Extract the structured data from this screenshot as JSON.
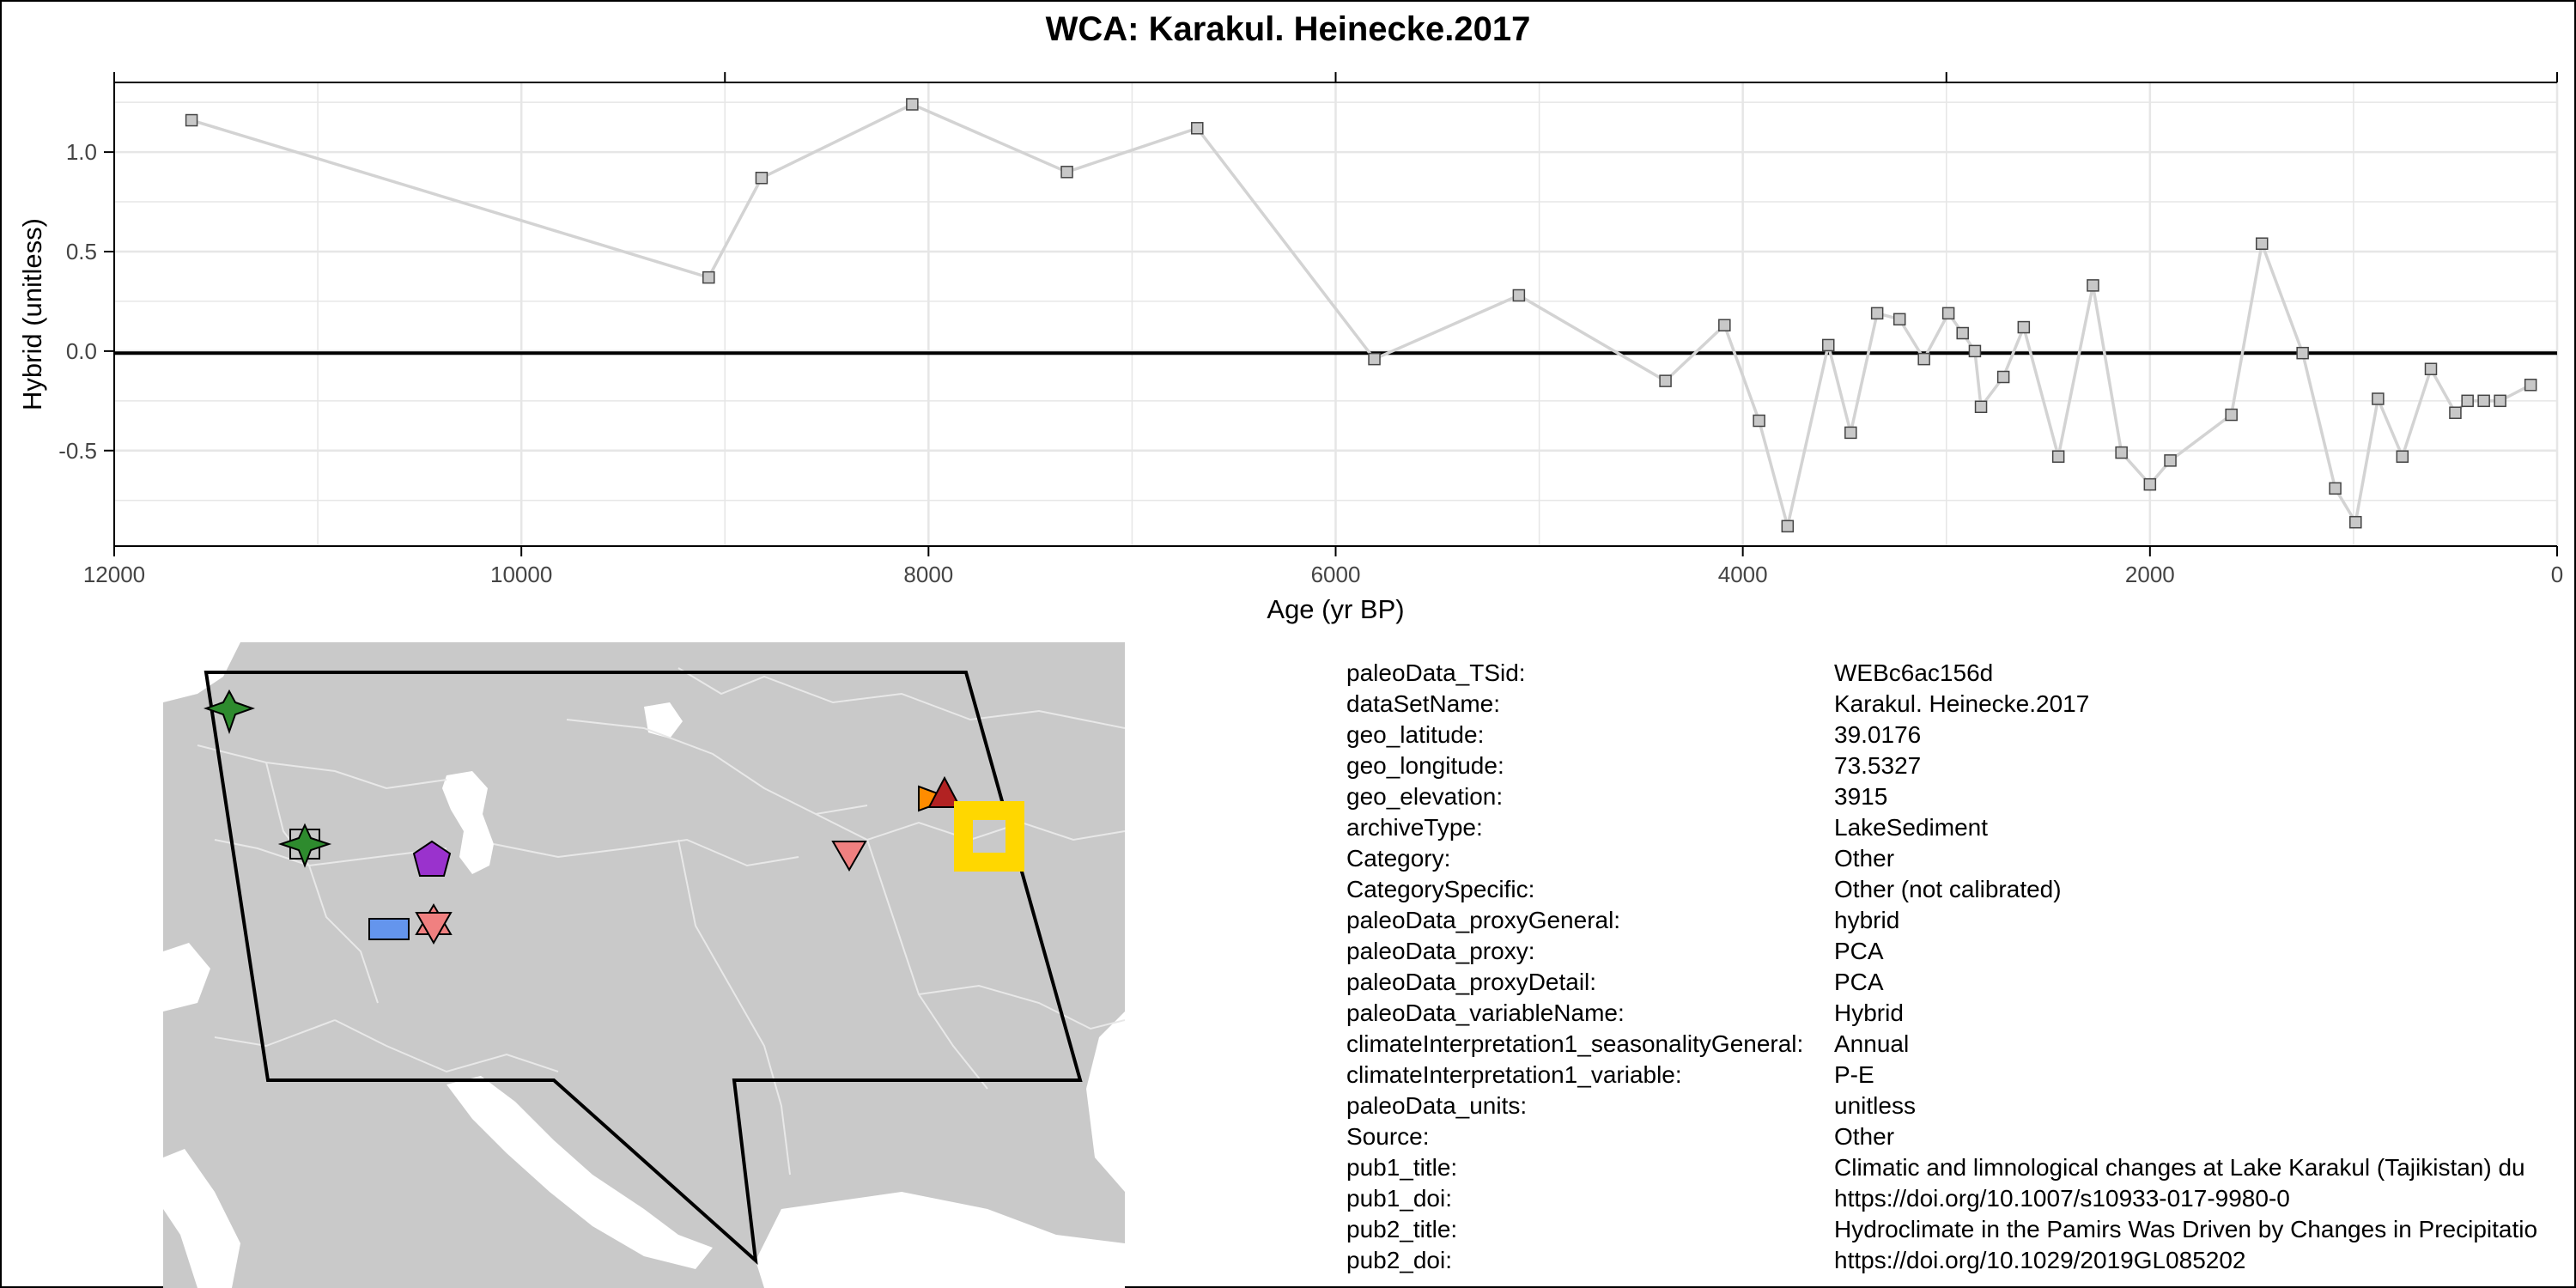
{
  "chart_data": {
    "type": "line",
    "title": "WCA: Karakul. Heinecke.2017",
    "xlabel": "Age (yr BP)",
    "ylabel": "Hybrid (unitless)",
    "xlim": [
      12000,
      0
    ],
    "ylim": [
      -0.98,
      1.35
    ],
    "x_ticks": [
      12000,
      10000,
      8000,
      6000,
      4000,
      2000,
      0
    ],
    "y_ticks": [
      1.0,
      0.5,
      0.0,
      -0.5
    ],
    "x_tick_labels": [
      "12000",
      "10000",
      "8000",
      "6000",
      "4000",
      "2000",
      "0"
    ],
    "y_tick_labels": [
      "1.0",
      "0.5",
      "0.0",
      "-0.5"
    ],
    "grid": true,
    "reference_line_y": -0.01,
    "series": [
      {
        "x": [
          11620,
          9080,
          8820,
          8080,
          7320,
          6680,
          5810,
          5100,
          4380,
          4090,
          3920,
          3780,
          3580,
          3470,
          3340,
          3230,
          3110,
          2990,
          2920,
          2860,
          2830,
          2720,
          2620,
          2450,
          2280,
          2140,
          2000,
          1900,
          1600,
          1450,
          1250,
          1090,
          990,
          880,
          760,
          620,
          500,
          440,
          360,
          280,
          130
        ],
        "y": [
          1.16,
          0.37,
          0.87,
          1.24,
          0.9,
          1.12,
          -0.04,
          0.28,
          -0.15,
          0.13,
          -0.35,
          -0.88,
          0.03,
          -0.41,
          0.19,
          0.16,
          -0.04,
          0.19,
          0.09,
          0.0,
          -0.28,
          -0.13,
          0.12,
          -0.53,
          0.33,
          -0.51,
          -0.67,
          -0.55,
          -0.32,
          0.54,
          -0.01,
          -0.69,
          -0.86,
          -0.24,
          -0.53,
          -0.09,
          -0.31,
          -0.25,
          -0.25,
          -0.25,
          -0.17
        ]
      }
    ],
    "colors": {
      "line": "#d3d3d3",
      "marker_fill": "#c8c8c8",
      "marker_edge": "#444444",
      "zero_line": "#000000",
      "grid": "#e6e6e6"
    }
  },
  "map": {
    "land_color": "#c9c9c9",
    "sea_color": "#ffffff",
    "region_outline": "#000000",
    "markers": [
      {
        "shape": "star4",
        "color": "#2e8b2e"
      },
      {
        "shape": "star4",
        "color": "#2e8b2e"
      },
      {
        "shape": "square",
        "color": "#c8c8c8"
      },
      {
        "shape": "pentagon",
        "color": "#9a32cd"
      },
      {
        "shape": "rectangle",
        "color": "#6495ed"
      },
      {
        "shape": "triangle-up",
        "color": "#f08080"
      },
      {
        "shape": "triangle-down",
        "color": "#f08080"
      },
      {
        "shape": "triangle-down",
        "color": "#f08080"
      },
      {
        "shape": "triangle-right",
        "color": "#ff8c00"
      },
      {
        "shape": "triangle-up",
        "color": "#b22222"
      },
      {
        "shape": "highlight-square",
        "color": "#ffd700"
      }
    ]
  },
  "metadata": [
    {
      "key": "paleoData_TSid:",
      "value": "WEBc6ac156d"
    },
    {
      "key": "dataSetName:",
      "value": "Karakul. Heinecke.2017"
    },
    {
      "key": "geo_latitude:",
      "value": "39.0176"
    },
    {
      "key": "geo_longitude:",
      "value": "73.5327"
    },
    {
      "key": "geo_elevation:",
      "value": "3915"
    },
    {
      "key": "archiveType:",
      "value": "LakeSediment"
    },
    {
      "key": "Category:",
      "value": "Other"
    },
    {
      "key": "CategorySpecific:",
      "value": "Other (not calibrated)"
    },
    {
      "key": "paleoData_proxyGeneral:",
      "value": "hybrid"
    },
    {
      "key": "paleoData_proxy:",
      "value": "PCA"
    },
    {
      "key": "paleoData_proxyDetail:",
      "value": "PCA"
    },
    {
      "key": "paleoData_variableName:",
      "value": "Hybrid"
    },
    {
      "key": "climateInterpretation1_seasonalityGeneral:",
      "value": "Annual"
    },
    {
      "key": "climateInterpretation1_variable:",
      "value": "P-E"
    },
    {
      "key": "paleoData_units:",
      "value": "unitless"
    },
    {
      "key": "Source:",
      "value": "Other"
    },
    {
      "key": "pub1_title:",
      "value": "Climatic and limnological changes at Lake Karakul (Tajikistan) du"
    },
    {
      "key": "pub1_doi:",
      "value": "https://doi.org/10.1007/s10933-017-9980-0"
    },
    {
      "key": "pub2_title:",
      "value": "Hydroclimate in the Pamirs Was Driven by Changes in Precipitatio"
    },
    {
      "key": "pub2_doi:",
      "value": "https://doi.org/10.1029/2019GL085202"
    }
  ]
}
